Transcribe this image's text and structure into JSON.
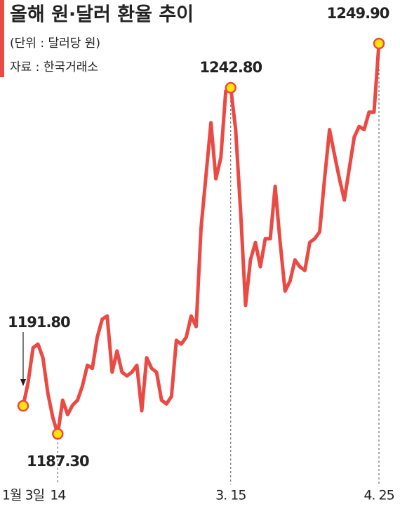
{
  "chart_data": {
    "type": "line",
    "title": "올해 원·달러 환율 추이",
    "subtitle": "(단위 : 달러당 원)",
    "source": "자료 : 한국거래소",
    "color": "#ea4a43",
    "marker_color": "#ffe600",
    "categories": [
      "1월 3일",
      null,
      null,
      null,
      null,
      null,
      null,
      "14",
      null,
      null,
      null,
      null,
      null,
      null,
      null,
      null,
      null,
      null,
      null,
      null,
      null,
      null,
      null,
      null,
      null,
      null,
      null,
      null,
      null,
      null,
      null,
      null,
      null,
      null,
      null,
      null,
      null,
      null,
      null,
      null,
      null,
      null,
      "3. 15",
      null,
      null,
      null,
      null,
      null,
      null,
      null,
      null,
      null,
      null,
      null,
      null,
      null,
      null,
      null,
      null,
      null,
      null,
      null,
      null,
      null,
      null,
      null,
      null,
      null,
      null,
      null,
      null,
      null,
      "4. 25"
    ],
    "values": [
      1191.8,
      1195.5,
      1201.1,
      1201.7,
      1199.5,
      1193.8,
      1189.9,
      1187.3,
      1192.7,
      1190.4,
      1191.9,
      1192.7,
      1195.0,
      1198.3,
      1197.8,
      1202.8,
      1205.7,
      1206.2,
      1197.2,
      1200.6,
      1197.2,
      1196.6,
      1197.2,
      1198.3,
      1191.0,
      1199.5,
      1197.8,
      1197.2,
      1192.7,
      1192.1,
      1193.3,
      1202.3,
      1201.7,
      1202.8,
      1206.2,
      1204.5,
      1220.3,
      1228.7,
      1237.2,
      1228.2,
      1231.6,
      1242.3,
      1242.8,
      1236.1,
      1223.1,
      1207.9,
      1215.2,
      1218.0,
      1214.1,
      1218.6,
      1218.6,
      1227.0,
      1218.0,
      1210.2,
      1211.8,
      1215.2,
      1214.1,
      1213.5,
      1218.0,
      1218.6,
      1219.7,
      1228.2,
      1236.1,
      1232.1,
      1228.2,
      1224.8,
      1229.9,
      1234.9,
      1236.6,
      1236.1,
      1238.9,
      1238.9,
      1249.9
    ],
    "value_labels": [
      "1191.80",
      null,
      null,
      null,
      null,
      null,
      null,
      "1187.30",
      null,
      null,
      null,
      null,
      null,
      null,
      null,
      null,
      null,
      null,
      null,
      null,
      null,
      null,
      null,
      null,
      null,
      null,
      null,
      null,
      null,
      null,
      null,
      null,
      null,
      null,
      null,
      null,
      null,
      null,
      null,
      null,
      null,
      null,
      "1242.80",
      null,
      null,
      null,
      null,
      null,
      null,
      null,
      null,
      null,
      null,
      null,
      null,
      null,
      null,
      null,
      null,
      null,
      null,
      null,
      null,
      null,
      null,
      null,
      null,
      null,
      null,
      null,
      null,
      null,
      "1249.90"
    ]
  }
}
